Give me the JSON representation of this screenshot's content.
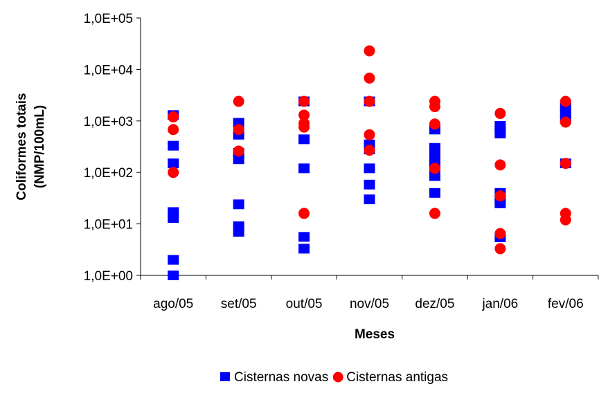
{
  "chart_data": {
    "type": "scatter",
    "title": "",
    "xlabel": "Meses",
    "ylabel_line1": "Coliformes totais",
    "ylabel_line2": "(NMP/100mL)",
    "y_scale": "log",
    "ylim": [
      1,
      100000
    ],
    "y_ticks": [
      {
        "value": 1,
        "label": "1,0E+00"
      },
      {
        "value": 10,
        "label": "1,0E+01"
      },
      {
        "value": 100,
        "label": "1,0E+02"
      },
      {
        "value": 1000,
        "label": "1,0E+03"
      },
      {
        "value": 10000,
        "label": "1,0E+04"
      },
      {
        "value": 100000,
        "label": "1,0E+05"
      }
    ],
    "categories": [
      "ago/05",
      "set/05",
      "out/05",
      "nov/05",
      "dez/05",
      "jan/06",
      "fev/06"
    ],
    "grid": false,
    "legend_position": "bottom",
    "series": [
      {
        "name": "Cisternas novas",
        "marker": "square",
        "color": "#0000ff",
        "points": [
          {
            "x": "ago/05",
            "y": 1300
          },
          {
            "x": "ago/05",
            "y": 330
          },
          {
            "x": "ago/05",
            "y": 150
          },
          {
            "x": "ago/05",
            "y": 17
          },
          {
            "x": "ago/05",
            "y": 13
          },
          {
            "x": "ago/05",
            "y": 2
          },
          {
            "x": "ago/05",
            "y": 1
          },
          {
            "x": "set/05",
            "y": 920
          },
          {
            "x": "set/05",
            "y": 540
          },
          {
            "x": "set/05",
            "y": 240
          },
          {
            "x": "set/05",
            "y": 180
          },
          {
            "x": "set/05",
            "y": 24
          },
          {
            "x": "set/05",
            "y": 9
          },
          {
            "x": "set/05",
            "y": 7
          },
          {
            "x": "out/05",
            "y": 2400
          },
          {
            "x": "out/05",
            "y": 440
          },
          {
            "x": "out/05",
            "y": 120
          },
          {
            "x": "out/05",
            "y": 5.6
          },
          {
            "x": "out/05",
            "y": 3.3
          },
          {
            "x": "nov/05",
            "y": 2400
          },
          {
            "x": "nov/05",
            "y": 350
          },
          {
            "x": "nov/05",
            "y": 280
          },
          {
            "x": "nov/05",
            "y": 120
          },
          {
            "x": "nov/05",
            "y": 58
          },
          {
            "x": "nov/05",
            "y": 30
          },
          {
            "x": "dez/05",
            "y": 680
          },
          {
            "x": "dez/05",
            "y": 300
          },
          {
            "x": "dez/05",
            "y": 230
          },
          {
            "x": "dez/05",
            "y": 160
          },
          {
            "x": "dez/05",
            "y": 130
          },
          {
            "x": "dez/05",
            "y": 85
          },
          {
            "x": "dez/05",
            "y": 40
          },
          {
            "x": "jan/06",
            "y": 800
          },
          {
            "x": "jan/06",
            "y": 680
          },
          {
            "x": "jan/06",
            "y": 570
          },
          {
            "x": "jan/06",
            "y": 40
          },
          {
            "x": "jan/06",
            "y": 30
          },
          {
            "x": "jan/06",
            "y": 25
          },
          {
            "x": "jan/06",
            "y": 5.5
          },
          {
            "x": "fev/06",
            "y": 1900
          },
          {
            "x": "fev/06",
            "y": 1500
          },
          {
            "x": "fev/06",
            "y": 1100
          },
          {
            "x": "fev/06",
            "y": 150
          }
        ]
      },
      {
        "name": "Cisternas antigas",
        "marker": "circle",
        "color": "#ff0000",
        "points": [
          {
            "x": "ago/05",
            "y": 1200
          },
          {
            "x": "ago/05",
            "y": 680
          },
          {
            "x": "ago/05",
            "y": 100
          },
          {
            "x": "set/05",
            "y": 2400
          },
          {
            "x": "set/05",
            "y": 680
          },
          {
            "x": "set/05",
            "y": 260
          },
          {
            "x": "out/05",
            "y": 2400
          },
          {
            "x": "out/05",
            "y": 1300
          },
          {
            "x": "out/05",
            "y": 900
          },
          {
            "x": "out/05",
            "y": 760
          },
          {
            "x": "out/05",
            "y": 16
          },
          {
            "x": "nov/05",
            "y": 23000
          },
          {
            "x": "nov/05",
            "y": 6800
          },
          {
            "x": "nov/05",
            "y": 2400
          },
          {
            "x": "nov/05",
            "y": 540
          },
          {
            "x": "nov/05",
            "y": 270
          },
          {
            "x": "dez/05",
            "y": 2400
          },
          {
            "x": "dez/05",
            "y": 1900
          },
          {
            "x": "dez/05",
            "y": 870
          },
          {
            "x": "dez/05",
            "y": 120
          },
          {
            "x": "dez/05",
            "y": 16
          },
          {
            "x": "jan/06",
            "y": 1400
          },
          {
            "x": "jan/06",
            "y": 140
          },
          {
            "x": "jan/06",
            "y": 35
          },
          {
            "x": "jan/06",
            "y": 6.5
          },
          {
            "x": "jan/06",
            "y": 3.3
          },
          {
            "x": "fev/06",
            "y": 2400
          },
          {
            "x": "fev/06",
            "y": 950
          },
          {
            "x": "fev/06",
            "y": 150
          },
          {
            "x": "fev/06",
            "y": 16
          },
          {
            "x": "fev/06",
            "y": 12
          }
        ]
      }
    ]
  }
}
